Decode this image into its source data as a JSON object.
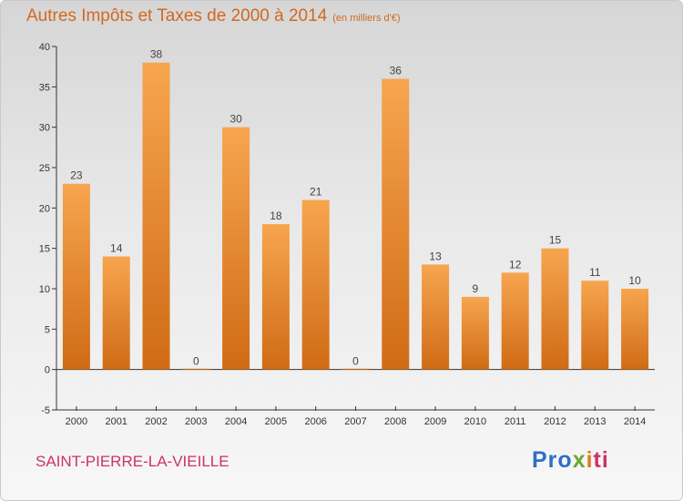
{
  "chart_data": {
    "type": "bar",
    "title": "Autres Impôts et Taxes de 2000 à 2014",
    "subtitle": "(en milliers d'€)",
    "xlabel": "",
    "ylabel": "",
    "categories": [
      "2000",
      "2001",
      "2002",
      "2003",
      "2004",
      "2005",
      "2006",
      "2007",
      "2008",
      "2009",
      "2010",
      "2011",
      "2012",
      "2013",
      "2014"
    ],
    "values": [
      23,
      14,
      38,
      0,
      30,
      18,
      21,
      0,
      36,
      13,
      9,
      12,
      15,
      11,
      10
    ],
    "data_labels": [
      "23",
      "14",
      "38",
      "0",
      "30",
      "18",
      "21",
      "0",
      "36",
      "13",
      "9",
      "12",
      "15",
      "11",
      "10"
    ],
    "ylim": [
      -5,
      40
    ],
    "yticks": [
      "-5",
      "0",
      "5",
      "10",
      "15",
      "20",
      "25",
      "30",
      "35",
      "40"
    ],
    "grid": false,
    "legend": "none",
    "bar_color_top": "#f7a54f",
    "bar_color_bottom": "#d06b15"
  },
  "footer": {
    "commune": "SAINT-PIERRE-LA-VIEILLE",
    "logo": {
      "p1": "Pro",
      "p2": "x",
      "p3": "i",
      "p4": "ti"
    }
  },
  "colors": {
    "title": "#d2691e",
    "commune": "#cc3366"
  }
}
